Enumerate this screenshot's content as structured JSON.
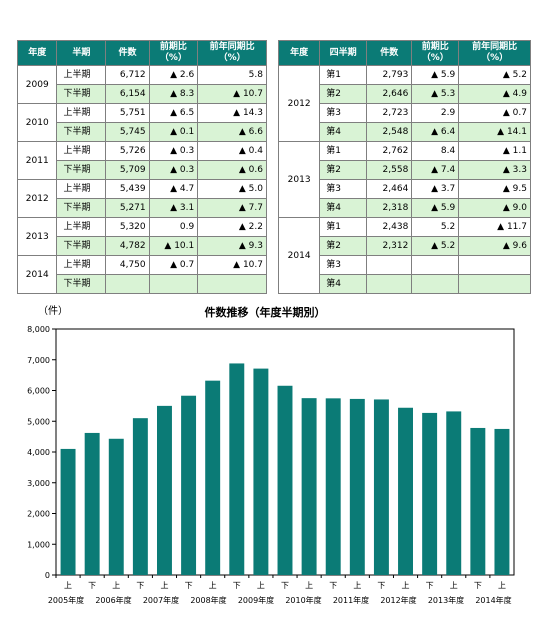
{
  "left_table": {
    "headers": [
      "年度",
      "半期",
      "件数",
      "前期比\n（%）",
      "前年同期比\n（%）"
    ],
    "groups": [
      {
        "year": "2009",
        "rows": [
          {
            "period": "上半期",
            "count": "6,712",
            "qoq": "▲ 2.6",
            "yoy": "5.8"
          },
          {
            "period": "下半期",
            "count": "6,154",
            "qoq": "▲ 8.3",
            "yoy": "▲ 10.7"
          }
        ]
      },
      {
        "year": "2010",
        "rows": [
          {
            "period": "上半期",
            "count": "5,751",
            "qoq": "▲ 6.5",
            "yoy": "▲ 14.3"
          },
          {
            "period": "下半期",
            "count": "5,745",
            "qoq": "▲ 0.1",
            "yoy": "▲ 6.6"
          }
        ]
      },
      {
        "year": "2011",
        "rows": [
          {
            "period": "上半期",
            "count": "5,726",
            "qoq": "▲ 0.3",
            "yoy": "▲ 0.4"
          },
          {
            "period": "下半期",
            "count": "5,709",
            "qoq": "▲ 0.3",
            "yoy": "▲ 0.6"
          }
        ]
      },
      {
        "year": "2012",
        "rows": [
          {
            "period": "上半期",
            "count": "5,439",
            "qoq": "▲ 4.7",
            "yoy": "▲ 5.0"
          },
          {
            "period": "下半期",
            "count": "5,271",
            "qoq": "▲ 3.1",
            "yoy": "▲ 7.7"
          }
        ]
      },
      {
        "year": "2013",
        "rows": [
          {
            "period": "上半期",
            "count": "5,320",
            "qoq": "0.9",
            "yoy": "▲ 2.2"
          },
          {
            "period": "下半期",
            "count": "4,782",
            "qoq": "▲ 10.1",
            "yoy": "▲ 9.3"
          }
        ]
      },
      {
        "year": "2014",
        "rows": [
          {
            "period": "上半期",
            "count": "4,750",
            "qoq": "▲ 0.7",
            "yoy": "▲ 10.7"
          },
          {
            "period": "下半期",
            "count": "",
            "qoq": "",
            "yoy": ""
          }
        ]
      }
    ]
  },
  "right_table": {
    "headers": [
      "年度",
      "四半期",
      "件数",
      "前期比\n（%）",
      "前年同期比\n（%）"
    ],
    "groups": [
      {
        "year": "2012",
        "rows": [
          {
            "period": "第1",
            "count": "2,793",
            "qoq": "▲ 5.9",
            "yoy": "▲ 5.2"
          },
          {
            "period": "第2",
            "count": "2,646",
            "qoq": "▲ 5.3",
            "yoy": "▲ 4.9"
          },
          {
            "period": "第3",
            "count": "2,723",
            "qoq": "2.9",
            "yoy": "▲ 0.7"
          },
          {
            "period": "第4",
            "count": "2,548",
            "qoq": "▲ 6.4",
            "yoy": "▲ 14.1"
          }
        ]
      },
      {
        "year": "2013",
        "rows": [
          {
            "period": "第1",
            "count": "2,762",
            "qoq": "8.4",
            "yoy": "▲ 1.1"
          },
          {
            "period": "第2",
            "count": "2,558",
            "qoq": "▲ 7.4",
            "yoy": "▲ 3.3"
          },
          {
            "period": "第3",
            "count": "2,464",
            "qoq": "▲ 3.7",
            "yoy": "▲ 9.5"
          },
          {
            "period": "第4",
            "count": "2,318",
            "qoq": "▲ 5.9",
            "yoy": "▲ 9.0"
          }
        ]
      },
      {
        "year": "2014",
        "rows": [
          {
            "period": "第1",
            "count": "2,438",
            "qoq": "5.2",
            "yoy": "▲ 11.7"
          },
          {
            "period": "第2",
            "count": "2,312",
            "qoq": "▲ 5.2",
            "yoy": "▲ 9.6"
          },
          {
            "period": "第3",
            "count": "",
            "qoq": "",
            "yoy": ""
          },
          {
            "period": "第4",
            "count": "",
            "qoq": "",
            "yoy": ""
          }
        ]
      }
    ]
  },
  "colors": {
    "header": "#0b7b76",
    "bar": "#0b7b76",
    "row_fill": "#d9f3d5"
  },
  "chart_data": {
    "type": "bar",
    "title": "件数推移（年度半期別）",
    "ylabel": "（件）",
    "xlabel": "",
    "ylim": [
      0,
      8000
    ],
    "yticks": [
      "0",
      "1,000",
      "2,000",
      "3,000",
      "4,000",
      "5,000",
      "6,000",
      "7,000",
      "8,000"
    ],
    "categories": [
      "上",
      "下",
      "上",
      "下",
      "上",
      "下",
      "上",
      "下",
      "上",
      "下",
      "上",
      "下",
      "上",
      "下",
      "上",
      "下",
      "上",
      "下",
      "上"
    ],
    "year_labels": [
      "2005年度",
      "2006年度",
      "2007年度",
      "2008年度",
      "2009年度",
      "2010年度",
      "2011年度",
      "2012年度",
      "2013年度",
      "2014年度"
    ],
    "values": [
      4100,
      4620,
      4430,
      5100,
      5500,
      5830,
      6320,
      6880,
      6712,
      6154,
      5751,
      5745,
      5726,
      5709,
      5439,
      5271,
      5320,
      4782,
      4750
    ],
    "grid": false
  }
}
